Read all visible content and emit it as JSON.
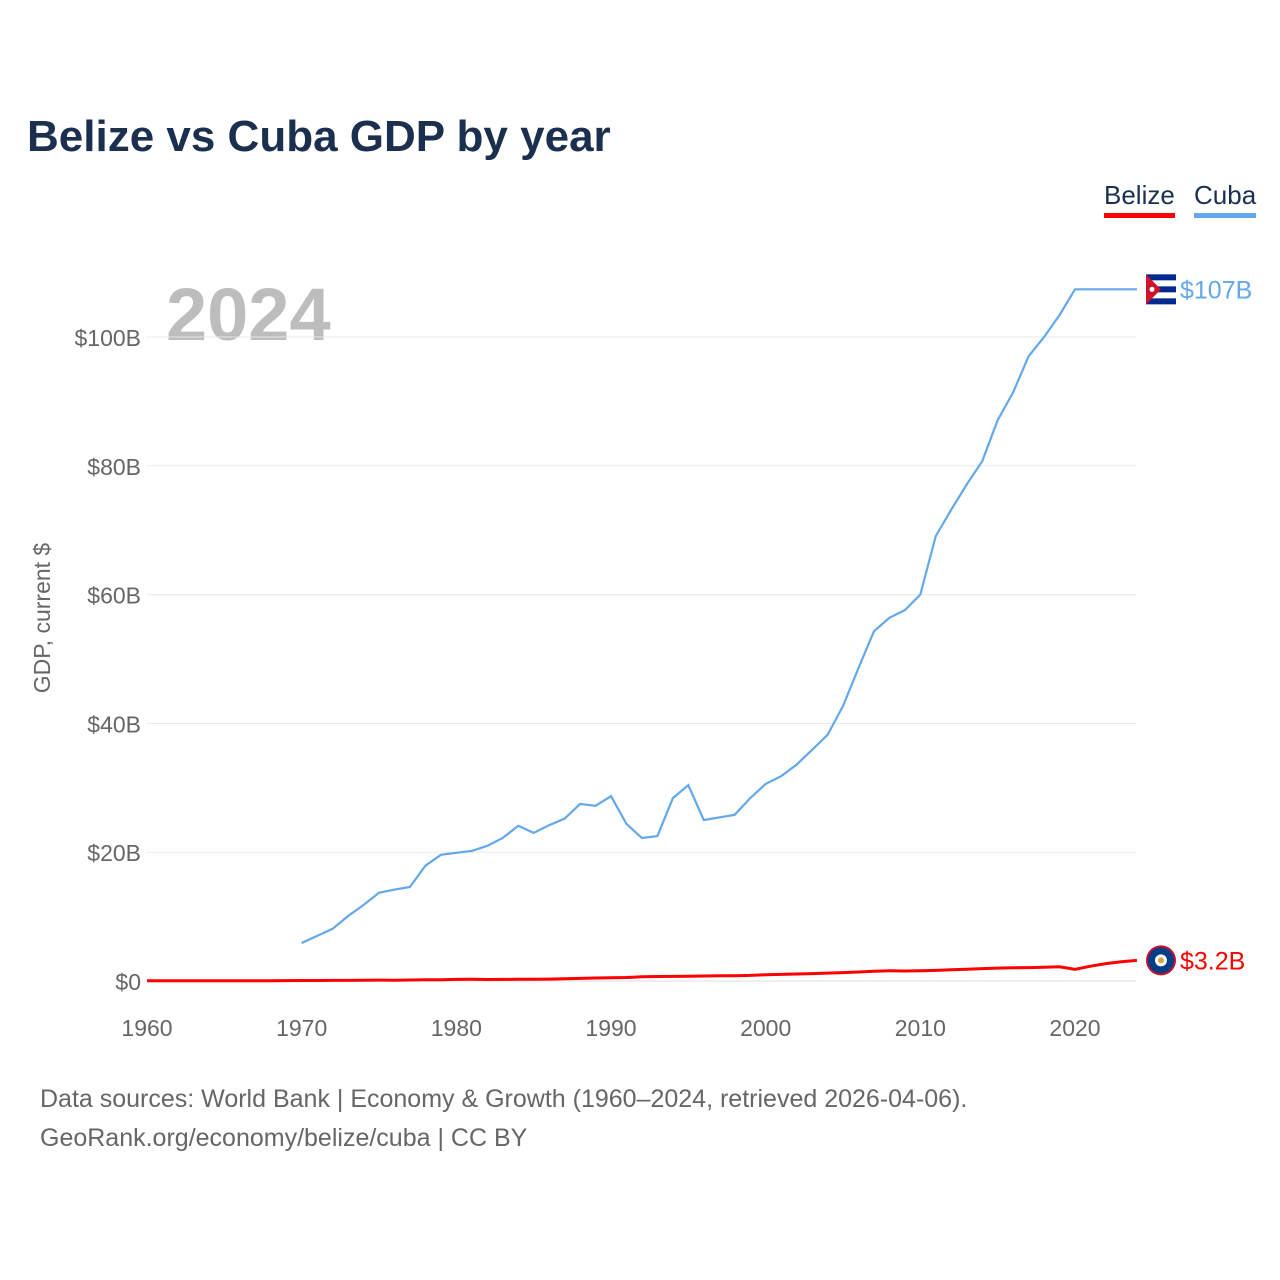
{
  "title": "Belize vs Cuba GDP by year",
  "legend": [
    {
      "name": "Belize",
      "color": "#ff0000"
    },
    {
      "name": "Cuba",
      "color": "#62a8ea"
    }
  ],
  "year_label": "2024",
  "sources": [
    "Data sources: World Bank | Economy & Growth (1960–2024, retrieved 2026-04-06).",
    "GeoRank.org/economy/belize/cuba | CC BY"
  ],
  "chart_data": {
    "type": "line",
    "title": "Belize vs Cuba GDP by year",
    "xlabel": "",
    "ylabel": "GDP, current $",
    "xlim": [
      1960,
      2024
    ],
    "ylim": [
      0,
      110
    ],
    "x_ticks": [
      1960,
      1970,
      1980,
      1990,
      2000,
      2010,
      2020
    ],
    "y_ticks": [
      {
        "v": 0,
        "label": "$0"
      },
      {
        "v": 20,
        "label": "$20B"
      },
      {
        "v": 40,
        "label": "$40B"
      },
      {
        "v": 60,
        "label": "$60B"
      },
      {
        "v": 80,
        "label": "$80B"
      },
      {
        "v": 100,
        "label": "$100B"
      }
    ],
    "grid": true,
    "legend_position": "top-right",
    "series": [
      {
        "name": "Belize",
        "color": "#ff0000",
        "end_label": "$3.2B",
        "start": 1960,
        "values": [
          0.03,
          0.03,
          0.03,
          0.04,
          0.04,
          0.04,
          0.05,
          0.05,
          0.05,
          0.06,
          0.07,
          0.08,
          0.09,
          0.1,
          0.12,
          0.14,
          0.13,
          0.15,
          0.18,
          0.2,
          0.25,
          0.26,
          0.24,
          0.25,
          0.27,
          0.28,
          0.3,
          0.35,
          0.4,
          0.46,
          0.5,
          0.55,
          0.65,
          0.7,
          0.72,
          0.75,
          0.78,
          0.8,
          0.82,
          0.87,
          0.98,
          1.03,
          1.08,
          1.15,
          1.22,
          1.3,
          1.4,
          1.5,
          1.6,
          1.55,
          1.58,
          1.65,
          1.74,
          1.82,
          1.93,
          2.0,
          2.05,
          2.08,
          2.13,
          2.2,
          1.8,
          2.3,
          2.7,
          3.0,
          3.2
        ]
      },
      {
        "name": "Cuba",
        "color": "#62a8ea",
        "end_label": "$107B",
        "start": 1970,
        "values": [
          5.9,
          7.0,
          8.1,
          10.1,
          11.8,
          13.7,
          14.2,
          14.6,
          17.9,
          19.6,
          19.9,
          20.2,
          21.0,
          22.2,
          24.1,
          23.0,
          24.2,
          25.2,
          27.5,
          27.2,
          28.7,
          24.4,
          22.2,
          22.5,
          28.4,
          30.4,
          25.0,
          25.4,
          25.8,
          28.4,
          30.6,
          31.8,
          33.6,
          35.9,
          38.2,
          42.7,
          48.6,
          54.3,
          56.4,
          57.6,
          60.0,
          69.1,
          73.2,
          77.1,
          80.7,
          87.1,
          91.4,
          97.0,
          100.0,
          103.4,
          107.4,
          107.4,
          107.4,
          107.4,
          107.4
        ]
      }
    ]
  }
}
